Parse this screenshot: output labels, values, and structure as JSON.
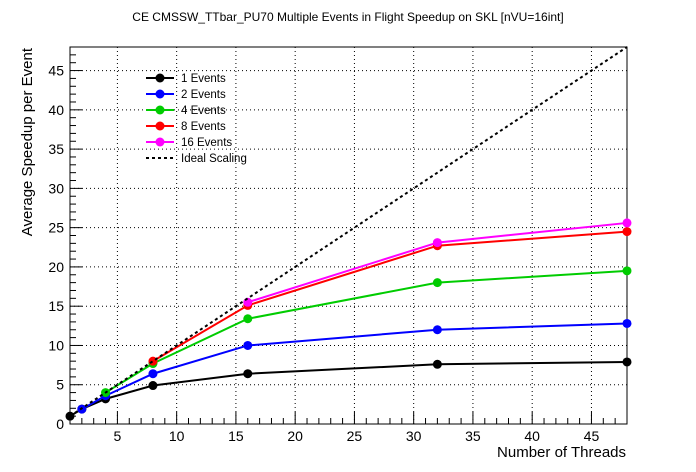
{
  "chart_data": {
    "type": "line",
    "title": "CE CMSSW_TTbar_PU70 Multiple Events in Flight Speedup on SKL [nVU=16int]",
    "xlabel": "Number of Threads",
    "ylabel": "Average Speedup per Event",
    "xlim": [
      1,
      48
    ],
    "ylim": [
      0,
      48
    ],
    "xticks": [
      5,
      10,
      15,
      20,
      25,
      30,
      35,
      40,
      45
    ],
    "yticks": [
      0,
      5,
      10,
      15,
      20,
      25,
      30,
      35,
      40,
      45
    ],
    "grid": true,
    "legend_position": "top-left",
    "x": [
      1,
      2,
      4,
      8,
      16,
      32,
      48
    ],
    "series": [
      {
        "name": "1 Events",
        "color": "#000000",
        "x": [
          1,
          2,
          4,
          8,
          16,
          32,
          48
        ],
        "values": [
          1.0,
          1.9,
          3.2,
          4.9,
          6.4,
          7.6,
          7.9
        ]
      },
      {
        "name": "2 Events",
        "color": "#0000ff",
        "x": [
          2,
          4,
          8,
          16,
          32,
          48
        ],
        "values": [
          1.9,
          3.6,
          6.4,
          10.0,
          12.0,
          12.8
        ]
      },
      {
        "name": "4 Events",
        "color": "#00cc00",
        "x": [
          4,
          8,
          16,
          32,
          48
        ],
        "values": [
          4.0,
          7.7,
          13.4,
          18.0,
          19.5
        ]
      },
      {
        "name": "8 Events",
        "color": "#ff0000",
        "x": [
          8,
          16,
          32,
          48
        ],
        "values": [
          8.0,
          15.1,
          22.7,
          24.5
        ]
      },
      {
        "name": "16 Events",
        "color": "#ff00ff",
        "x": [
          16,
          32,
          48
        ],
        "values": [
          15.5,
          23.1,
          25.6
        ]
      },
      {
        "name": "Ideal Scaling",
        "color": "#000000",
        "dashed": true,
        "x": [
          1,
          48
        ],
        "values": [
          1,
          48
        ]
      }
    ]
  }
}
